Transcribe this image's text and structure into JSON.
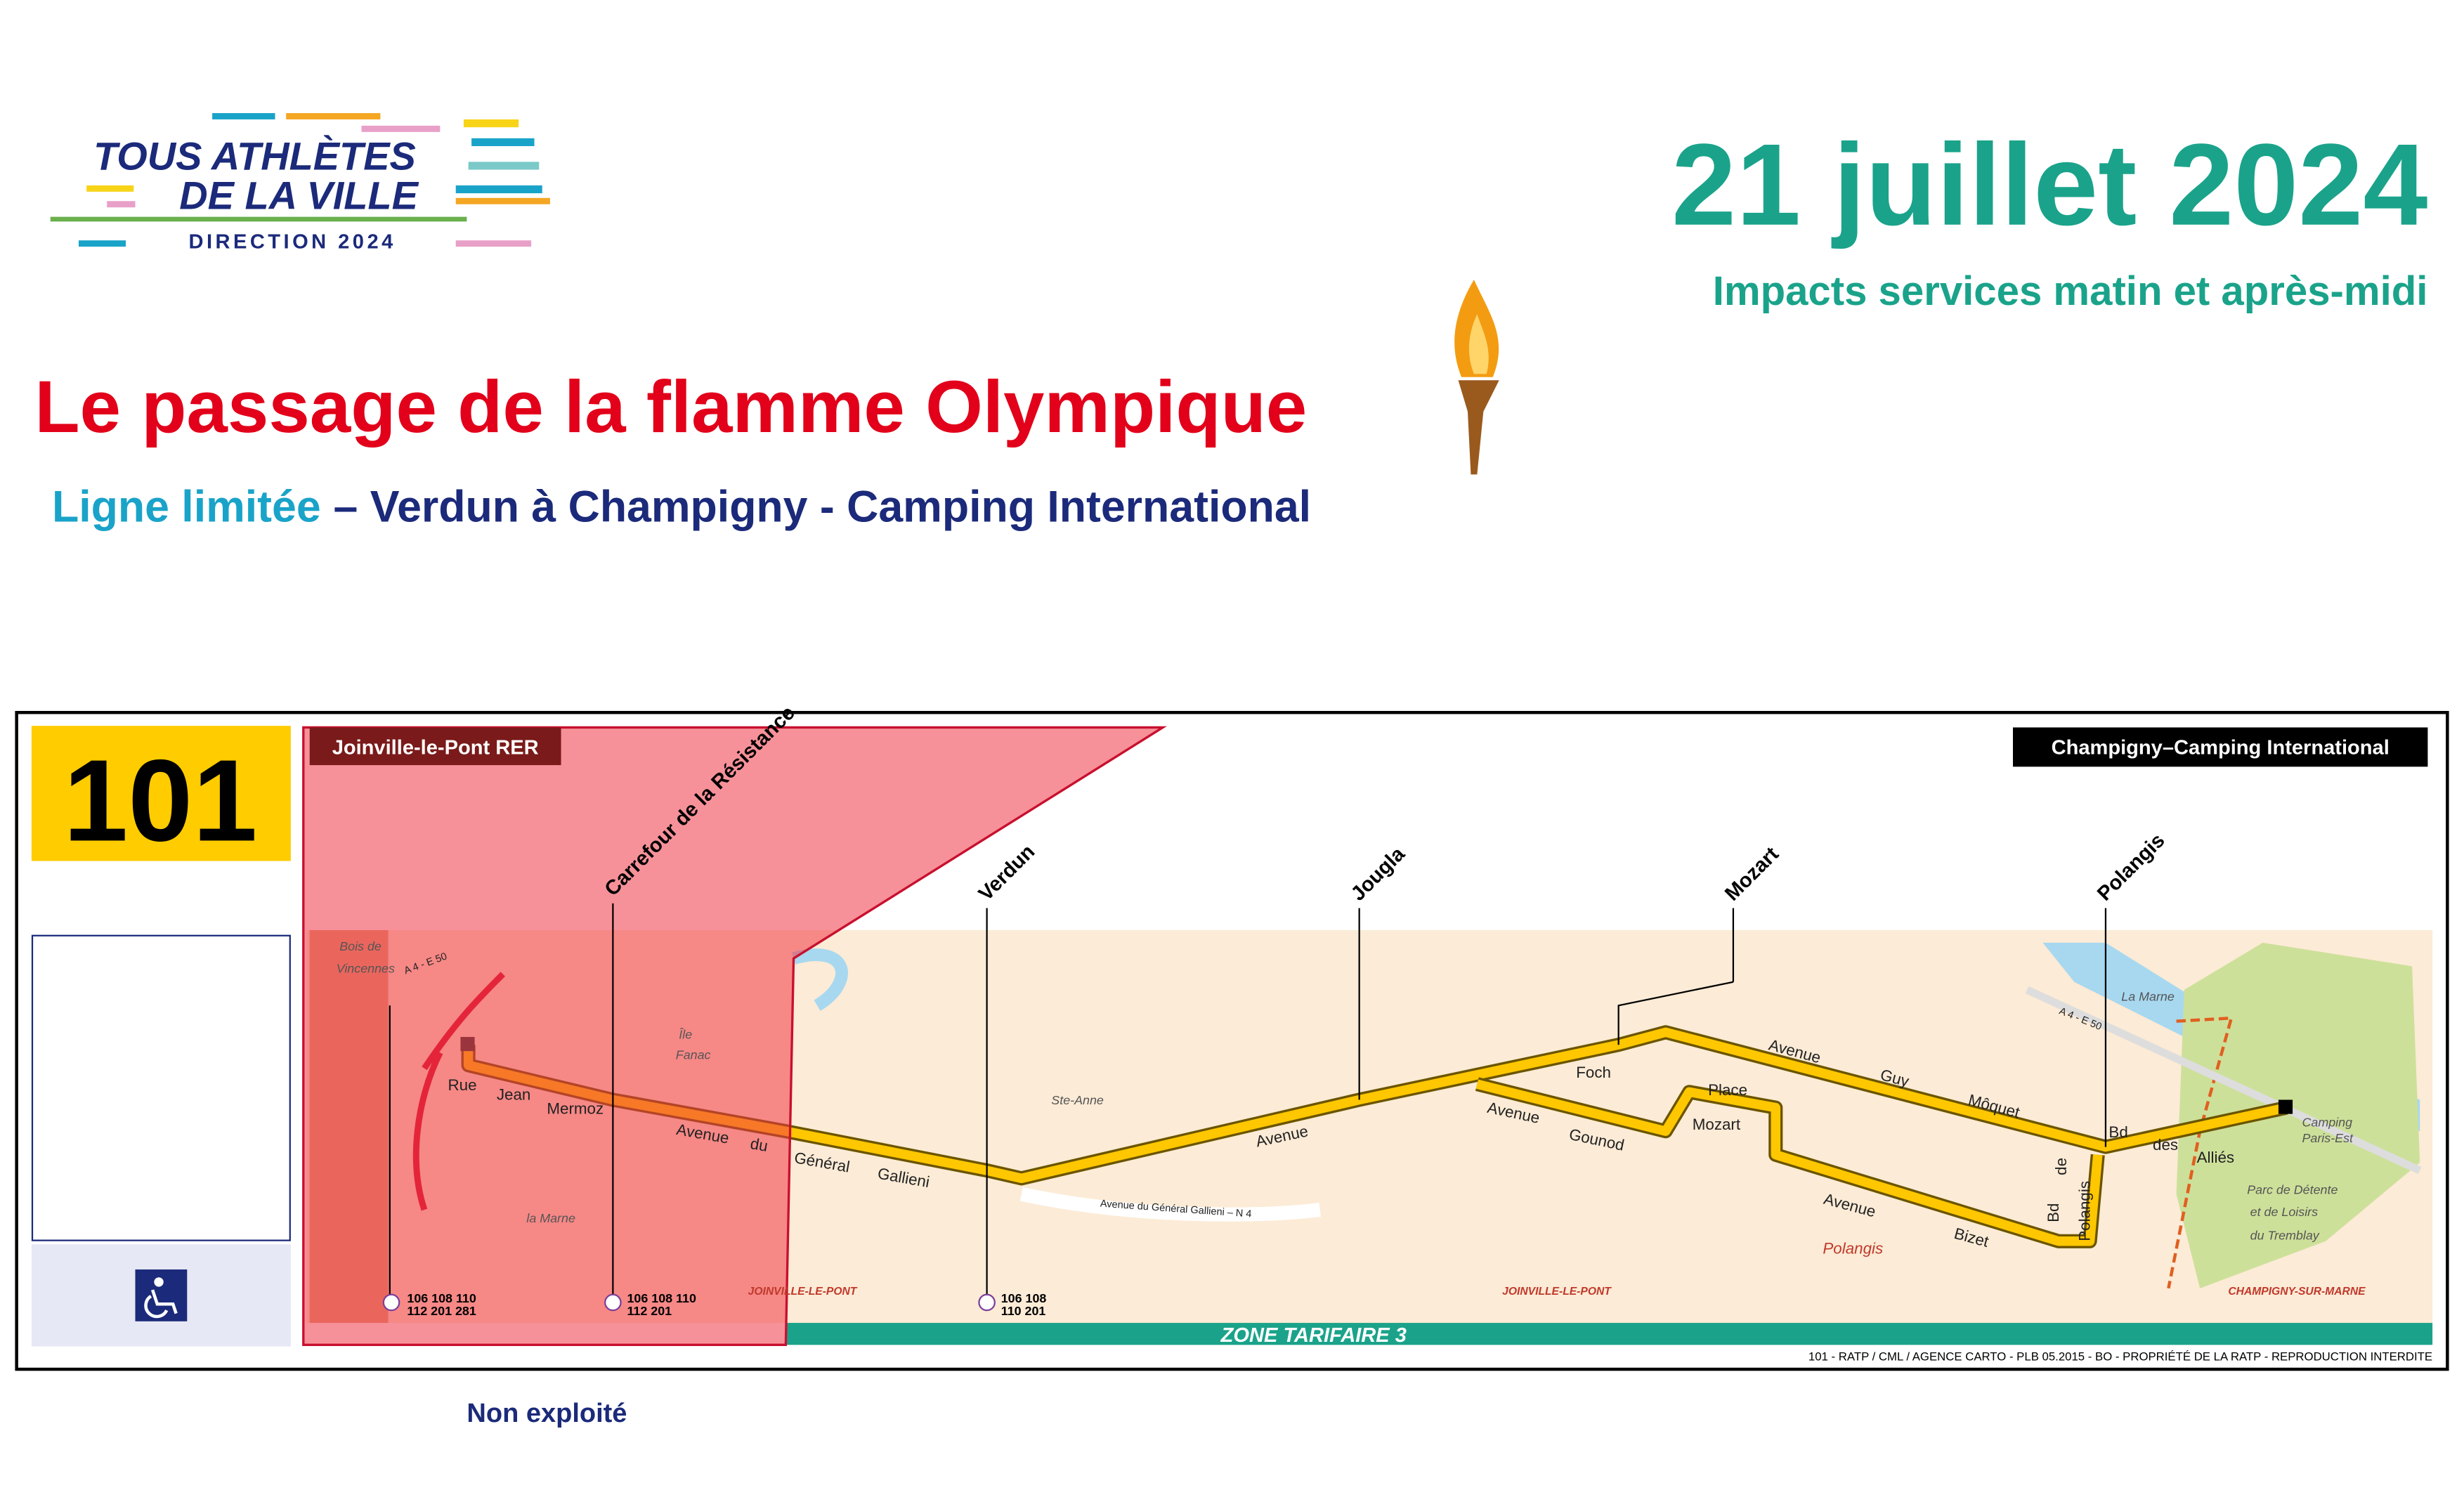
{
  "header": {
    "logo": {
      "line1": "TOUS ATHLÈTES",
      "line2": "DE LA VILLE",
      "line3": "DIRECTION 2024"
    },
    "date": "21 juillet 2024",
    "impacts": "Impacts services matin et après-midi",
    "title": "Le passage de la flamme Olympique",
    "subtitle": {
      "status": "Ligne limitée",
      "route": "– Verdun à Champigny - Camping International"
    }
  },
  "map": {
    "line": "101",
    "origin": "Joinville-le-Pont RER",
    "terminus": "Champigny–Camping International",
    "stops": [
      {
        "name": "Carrefour de la Résistance",
        "connections": [
          "106 108 110",
          "112 201"
        ]
      },
      {
        "name": "Verdun",
        "connections": [
          "106 108",
          "110 201"
        ]
      },
      {
        "name": "Jougla"
      },
      {
        "name": "Mozart"
      },
      {
        "name": "Polangis"
      }
    ],
    "origin_connections": [
      "106 108 110",
      "112 201 281"
    ],
    "streets": [
      "Rue",
      "Jean",
      "Mermoz",
      "Avenue",
      "du",
      "Général",
      "Gallieni",
      "Avenue",
      "Foch",
      "Avenue",
      "Guy",
      "Môquet",
      "Avenue",
      "Gounod",
      "Place",
      "Mozart",
      "Avenue",
      "Bizet",
      "Bd",
      "des",
      "Alliés",
      "Bd",
      "de",
      "Polangis",
      "Avenue du Général Gallieni – N 4",
      "A 4 - E 50",
      "A 4 - E 50"
    ],
    "places": [
      "Bois de",
      "Vincennes",
      "Île",
      "Fanac",
      "la Marne",
      "Ste-Anne",
      "Polangis",
      "La Marne",
      "Camping",
      "Paris-Est",
      "Parc de Détente",
      "et de Loisirs",
      "du Tremblay"
    ],
    "communes": [
      "JOINVILLE-LE-PONT",
      "JOINVILLE-LE-PONT",
      "CHAMPIGNY-SUR-MARNE"
    ],
    "zone": "ZONE TARIFAIRE 3",
    "credit": "101 - RATP / CML / AGENCE CARTO - PLB 05.2015 - BO - PROPRIÉTÉ DE LA RATP - REPRODUCTION INTERDITE"
  },
  "legend": {
    "not_served": "Non exploité"
  }
}
